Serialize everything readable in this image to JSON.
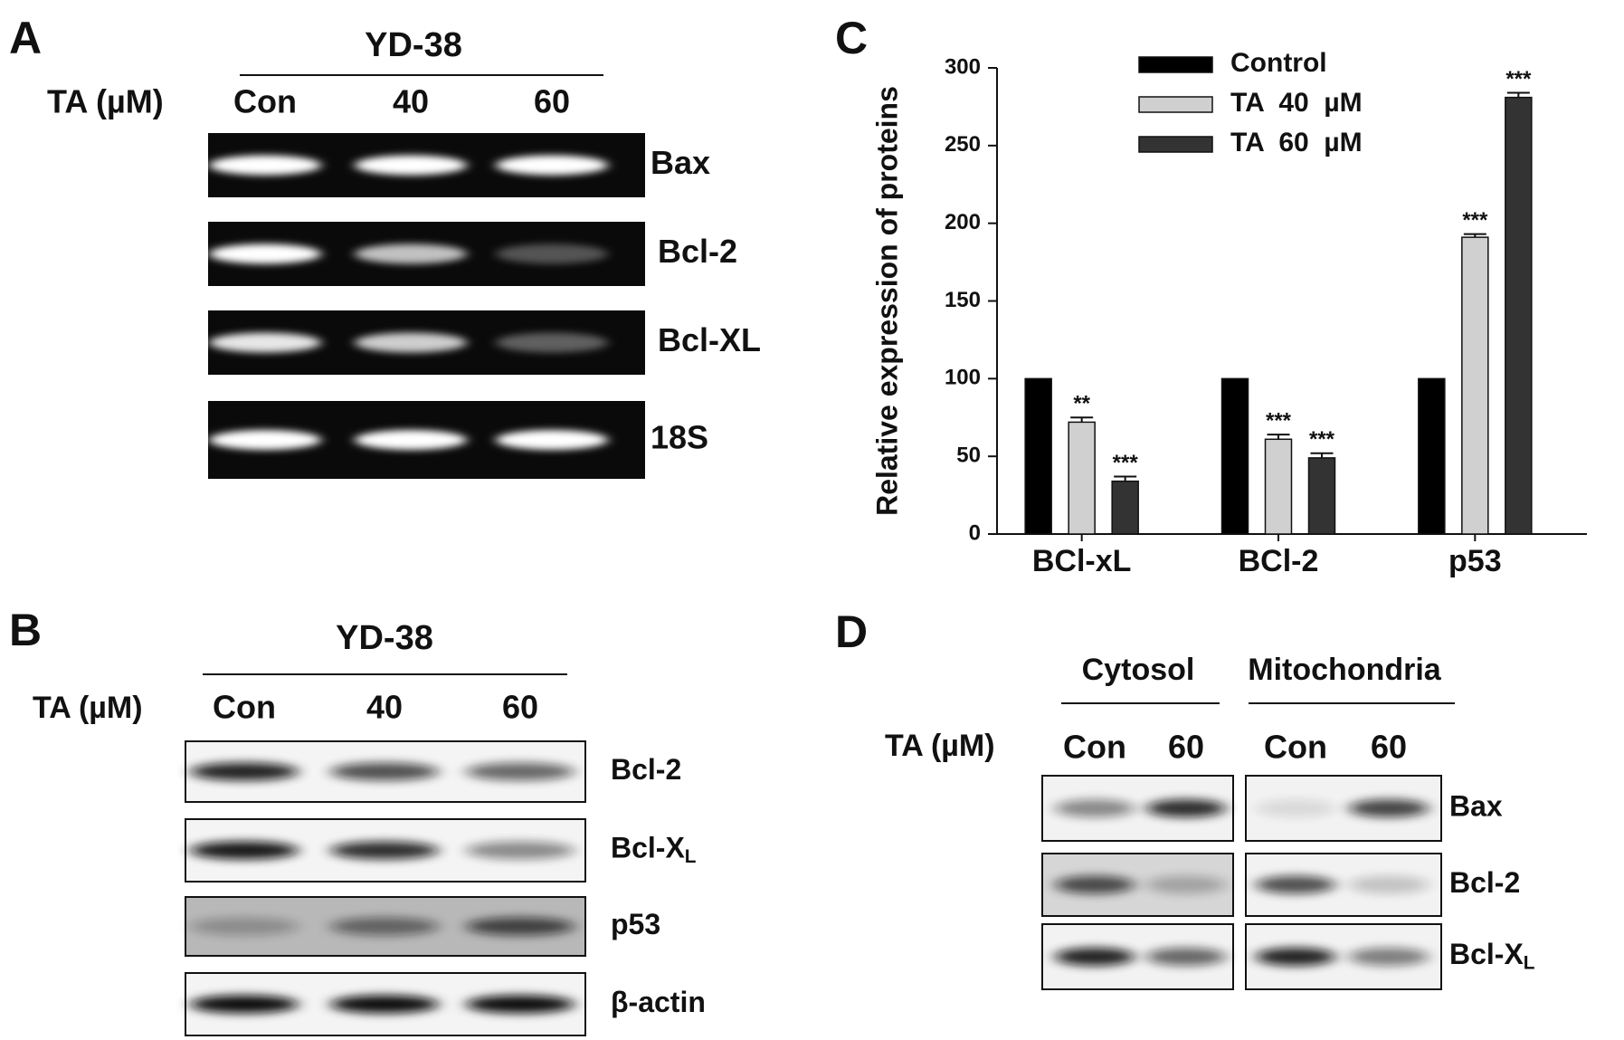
{
  "panels": {
    "A": {
      "letter": "A",
      "cell_line": "YD-38",
      "treatment_label": "TA (µM)",
      "lanes": [
        "Con",
        "40",
        "60"
      ],
      "rows": [
        "Bax",
        "Bcl-2",
        "Bcl-XL",
        "18S"
      ]
    },
    "B": {
      "letter": "B",
      "cell_line": "YD-38",
      "treatment_label": "TA (µM)",
      "lanes": [
        "Con",
        "40",
        "60"
      ],
      "rows": [
        "Bcl-2",
        {
          "text": "Bcl-X",
          "subscript": "L"
        },
        "p53",
        "β-actin"
      ]
    },
    "D": {
      "letter": "D",
      "fractions": [
        "Cytosol",
        "Mitochondria"
      ],
      "treatment_label": "TA (µM)",
      "lanes": [
        "Con",
        "60",
        "Con",
        "60"
      ],
      "rows": [
        "Bax",
        "Bcl-2",
        {
          "text": "Bcl-X",
          "subscript": "L"
        }
      ]
    }
  },
  "chart_data": {
    "type": "bar",
    "letter": "C",
    "ylabel": "Relative expression of proteins",
    "categories": [
      "BCl-xL",
      "BCl-2",
      "p53"
    ],
    "series": [
      {
        "name": "Control",
        "color": "#000000",
        "values": [
          100,
          100,
          100
        ]
      },
      {
        "name": "TA  40  µM",
        "color": "#d0d0d0",
        "values": [
          72,
          61,
          191
        ],
        "errors": [
          3,
          3,
          2
        ],
        "annotations": [
          "**",
          "***",
          "***"
        ]
      },
      {
        "name": "TA  60  µM",
        "color": "#333333",
        "values": [
          34,
          49,
          281
        ],
        "errors": [
          3,
          3,
          3
        ],
        "annotations": [
          "***",
          "***",
          "***"
        ]
      }
    ],
    "ylim": [
      0,
      300
    ],
    "yticks": [
      0,
      50,
      100,
      150,
      200,
      250,
      300
    ],
    "legend": "upper center"
  }
}
